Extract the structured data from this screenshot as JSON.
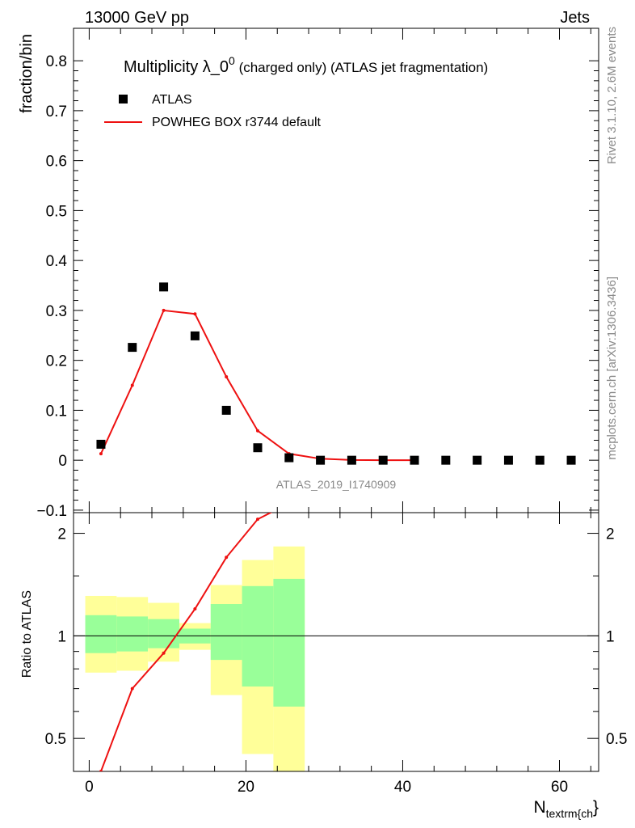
{
  "header": {
    "left": "13000 GeV pp",
    "right": "Jets"
  },
  "side_text": {
    "rivet": "Rivet 3.1.10,  2.6M events",
    "mcplots": "mcplots.cern.ch [arXiv:1306.3436]"
  },
  "chart_data": [
    {
      "type": "scatter",
      "title_main": "Multiplicity λ_0",
      "title_sup": "0",
      "title_rest": " (charged only) (ATLAS jet fragmentation)",
      "ylabel": "fraction/bin",
      "analysis_tag": "ATLAS_2019_I1740909",
      "xlim": [
        -2,
        65
      ],
      "ylim": [
        -0.105,
        0.865
      ],
      "yticks": [
        -0.1,
        0,
        0.1,
        0.2,
        0.3,
        0.4,
        0.5,
        0.6,
        0.7,
        0.8
      ],
      "ytick_labels": [
        "−0.1",
        "0",
        "0.1",
        "0.2",
        "0.3",
        "0.4",
        "0.5",
        "0.6",
        "0.7",
        "0.8"
      ],
      "legend_position": "top-left",
      "series": [
        {
          "name": "ATLAS",
          "kind": "markers",
          "color": "#000000",
          "x": [
            1.5,
            5.5,
            9.5,
            13.5,
            17.5,
            21.5,
            25.5,
            29.5,
            33.5,
            37.5,
            41.5,
            45.5,
            49.5,
            53.5,
            57.5,
            61.5
          ],
          "y": [
            0.032,
            0.226,
            0.347,
            0.249,
            0.1,
            0.025,
            0.005,
            0.0,
            0.0,
            0.0,
            0.0,
            0.0,
            0.0,
            0.0,
            0.0,
            0.0
          ]
        },
        {
          "name": "POWHEG BOX r3744 default",
          "kind": "line",
          "color": "#ee1111",
          "x": [
            1.5,
            5.5,
            9.5,
            13.5,
            17.5,
            21.5,
            25.5,
            29.5,
            33.5,
            37.5,
            41.5
          ],
          "y": [
            0.013,
            0.15,
            0.3,
            0.293,
            0.167,
            0.059,
            0.013,
            0.003,
            0.0005,
            0.0001,
            0.0
          ]
        }
      ]
    },
    {
      "type": "line",
      "ylabel": "Ratio to ATLAS",
      "xlabel_main": "N",
      "xlabel_sub": "textrm{ch",
      "xlabel_end": "}",
      "xlim": [
        -2,
        65
      ],
      "ylim": [
        0.4,
        2.3
      ],
      "log_y": true,
      "xticks": [
        0,
        20,
        40,
        60
      ],
      "xtick_labels": [
        "0",
        "20",
        "40",
        "60"
      ],
      "yticks": [
        0.5,
        1,
        2
      ],
      "ytick_labels": [
        "0.5",
        "1",
        "2"
      ],
      "reference_line": 1,
      "bands": {
        "bin_edges": [
          -0.5,
          3.5,
          7.5,
          11.5,
          15.5,
          19.5,
          23.5,
          27.5
        ],
        "outer_color": "#ffff99",
        "inner_color": "#99ff99",
        "outer_low": [
          0.78,
          0.79,
          0.84,
          0.91,
          0.67,
          0.45,
          0.37
        ],
        "outer_high": [
          1.31,
          1.3,
          1.25,
          1.09,
          1.41,
          1.67,
          1.83
        ],
        "inner_low": [
          0.89,
          0.9,
          0.92,
          0.95,
          0.85,
          0.71,
          0.62
        ],
        "inner_high": [
          1.15,
          1.14,
          1.12,
          1.05,
          1.24,
          1.4,
          1.47
        ]
      },
      "series": [
        {
          "name": "POWHEG BOX r3744 default",
          "color": "#ee1111",
          "x": [
            1.5,
            5.5,
            9.5,
            13.5,
            17.5,
            21.5,
            25.5
          ],
          "y": [
            0.4,
            0.7,
            0.89,
            1.2,
            1.7,
            2.2,
            2.45
          ]
        }
      ]
    }
  ]
}
